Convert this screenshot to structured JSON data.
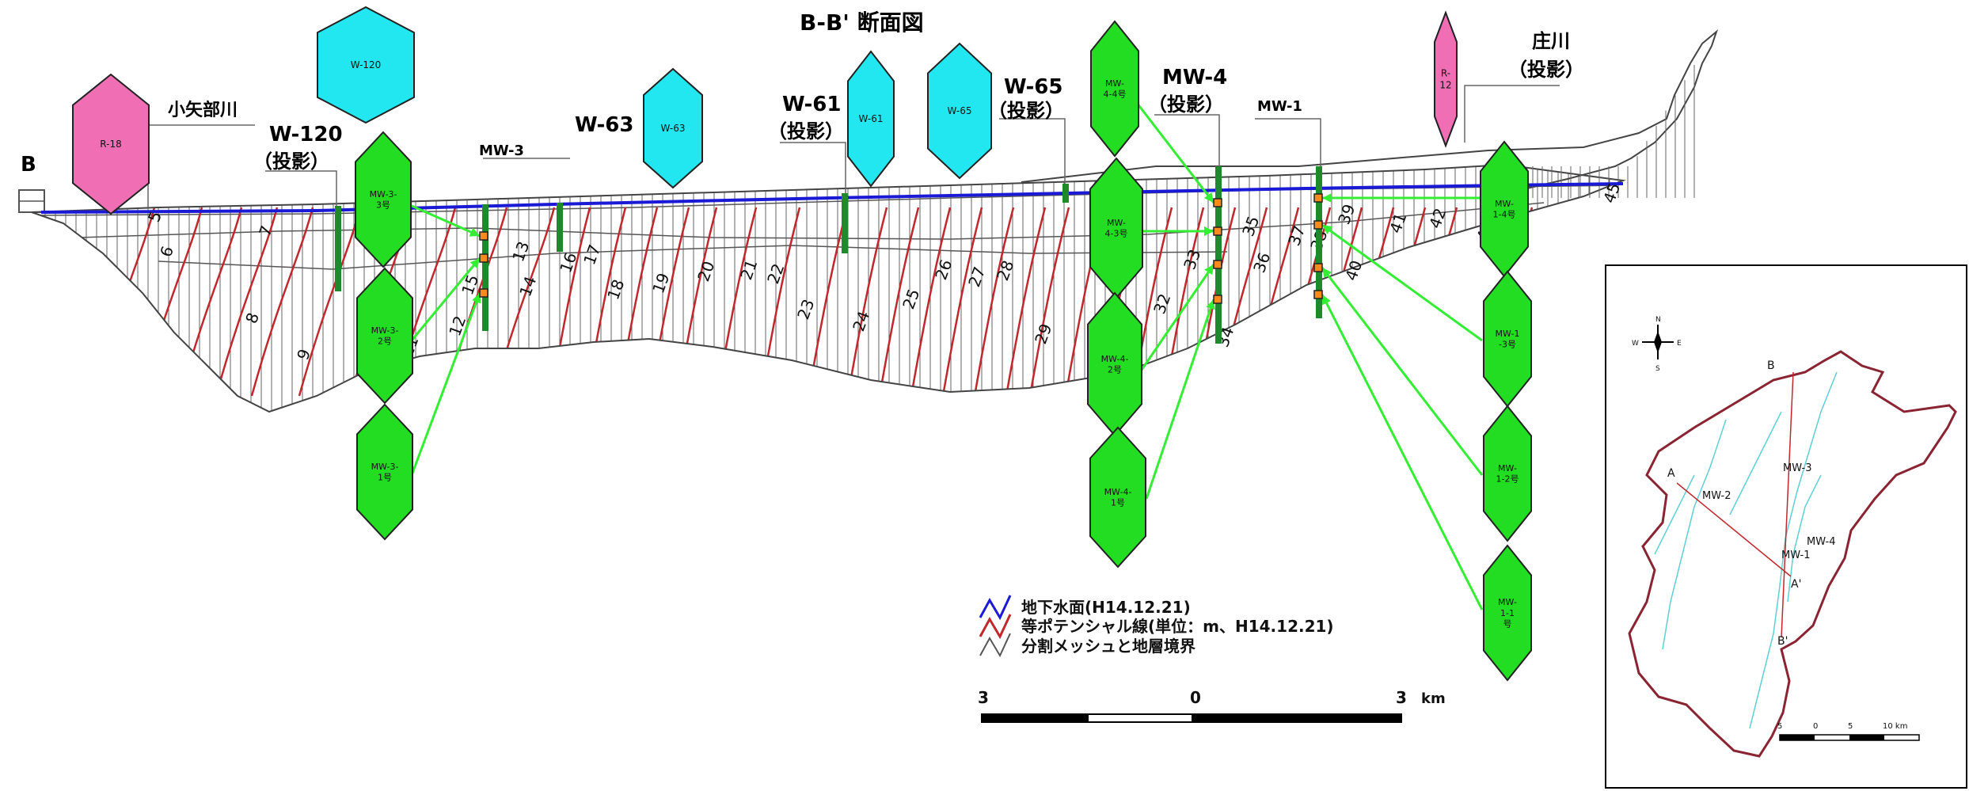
{
  "title": "B-B' 断面図",
  "section_end_left": "B",
  "rivers": [
    {
      "id": "koyabe",
      "label": "小矢部川"
    },
    {
      "id": "sho",
      "label": "庄川"
    },
    {
      "id": "sho_proj",
      "label": "（投影）"
    }
  ],
  "wells": [
    {
      "id": "w120",
      "name": "W-120",
      "sub": "（投影）"
    },
    {
      "id": "mw3",
      "name": "MW-3",
      "sub": ""
    },
    {
      "id": "w63",
      "name": "W-63",
      "sub": ""
    },
    {
      "id": "w61",
      "name": "W-61",
      "sub": "（投影）"
    },
    {
      "id": "w65",
      "name": "W-65",
      "sub": "（投影）"
    },
    {
      "id": "mw4",
      "name": "MW-4",
      "sub": "（投影）"
    },
    {
      "id": "mw1",
      "name": "MW-1",
      "sub": ""
    }
  ],
  "cyan_markers": [
    {
      "id": "c120",
      "text": "W-120"
    },
    {
      "id": "c63",
      "text": "W-63"
    },
    {
      "id": "c61",
      "text": "W-61"
    },
    {
      "id": "c65",
      "text": "W-65"
    }
  ],
  "pink_markers": [
    {
      "id": "r18",
      "lines": [
        "R-18"
      ]
    },
    {
      "id": "r12",
      "lines": [
        "R-",
        "12"
      ]
    }
  ],
  "green_markers": [
    {
      "id": "g33",
      "lines": [
        "MW-3-",
        "3号"
      ]
    },
    {
      "id": "g32",
      "lines": [
        "MW-3-",
        "2号"
      ]
    },
    {
      "id": "g31",
      "lines": [
        "MW-3-",
        "1号"
      ]
    },
    {
      "id": "g44",
      "lines": [
        "MW-",
        "4-4号"
      ]
    },
    {
      "id": "g43",
      "lines": [
        "MW-",
        "4-3号"
      ]
    },
    {
      "id": "g42",
      "lines": [
        "MW-4-",
        "2号"
      ]
    },
    {
      "id": "g41",
      "lines": [
        "MW-4-",
        "1号"
      ]
    },
    {
      "id": "g14",
      "lines": [
        "MW-",
        "1-4号"
      ]
    },
    {
      "id": "g13",
      "lines": [
        "MW-1",
        "-3号"
      ]
    },
    {
      "id": "g12",
      "lines": [
        "MW-",
        "1-2号"
      ]
    },
    {
      "id": "g11",
      "lines": [
        "MW-",
        "1-1",
        "号"
      ]
    }
  ],
  "contour_labels": [
    "5",
    "6",
    "7",
    "8",
    "9",
    "11",
    "12",
    "13",
    "14",
    "15",
    "16",
    "17",
    "18",
    "19",
    "20",
    "21",
    "22",
    "23",
    "24",
    "25",
    "26",
    "27",
    "28",
    "29",
    "31",
    "32",
    "33",
    "34",
    "35",
    "36",
    "37",
    "38",
    "39",
    "40",
    "41",
    "42",
    "44",
    "45"
  ],
  "legend": [
    {
      "id": "gw",
      "label": "地下水面(H14.12.21)",
      "color": "#1a1ad6"
    },
    {
      "id": "eq",
      "label": "等ポテンシャル線(単位：m、H14.12.21)",
      "color": "#c0282d"
    },
    {
      "id": "mesh",
      "label": "分割メッシュと地層境界",
      "color": "#555555"
    }
  ],
  "scale": {
    "left": "3",
    "mid": "0",
    "right": "3",
    "unit": "km"
  },
  "inset": {
    "labels": [
      "B",
      "A",
      "A'",
      "B'",
      "MW-2",
      "MW-3",
      "MW-4",
      "MW-1"
    ],
    "scale": [
      "5",
      "0",
      "5",
      "10 km"
    ]
  },
  "colors": {
    "green": "#22dd22",
    "cyan": "#22e6f0",
    "pink": "#f06eb4",
    "water": "#1a1ad6",
    "contour": "#c0282d",
    "arrow": "#33ee33",
    "screen": "#ff8a1c"
  }
}
